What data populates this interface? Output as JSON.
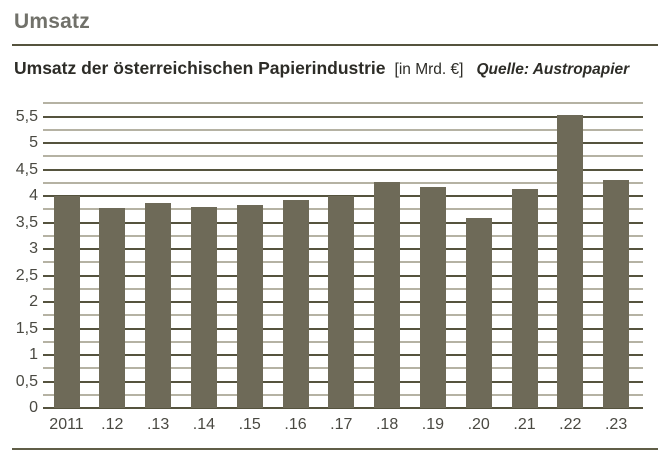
{
  "header": {
    "title": "Umsatz"
  },
  "chart": {
    "title": "Umsatz der österreichischen Papierindustrie",
    "unit_label": "[in Mrd. €]",
    "source": "Quelle: Austropapier"
  },
  "chart_data": {
    "type": "bar",
    "title": "Umsatz der österreichischen Papierindustrie",
    "subtitle": "[in Mrd. €]",
    "source": "Quelle: Austropapier",
    "categories": [
      "2011",
      ".12",
      ".13",
      ".14",
      ".15",
      ".16",
      ".17",
      ".18",
      ".19",
      ".20",
      ".21",
      ".22",
      ".23"
    ],
    "values": [
      4.0,
      3.78,
      3.87,
      3.79,
      3.83,
      3.92,
      4.0,
      4.27,
      4.17,
      3.58,
      4.13,
      5.52,
      4.3
    ],
    "ylabel": "",
    "xlabel": "",
    "ylim": [
      0,
      5.75
    ],
    "y_major_step": 0.5,
    "y_minor_step": 0.25,
    "y_tick_labels": [
      "0",
      "0,5",
      "1",
      "1,5",
      "2",
      "2,5",
      "3",
      "3,5",
      "4",
      "4,5",
      "5",
      "5,5"
    ],
    "grid": true,
    "legend": false,
    "colors": {
      "bar": "#6e6a58",
      "grid_major": "#55533e",
      "grid_minor": "#b5b2a3",
      "baseline": "#55533e",
      "axis_text": "#4a4942"
    }
  }
}
